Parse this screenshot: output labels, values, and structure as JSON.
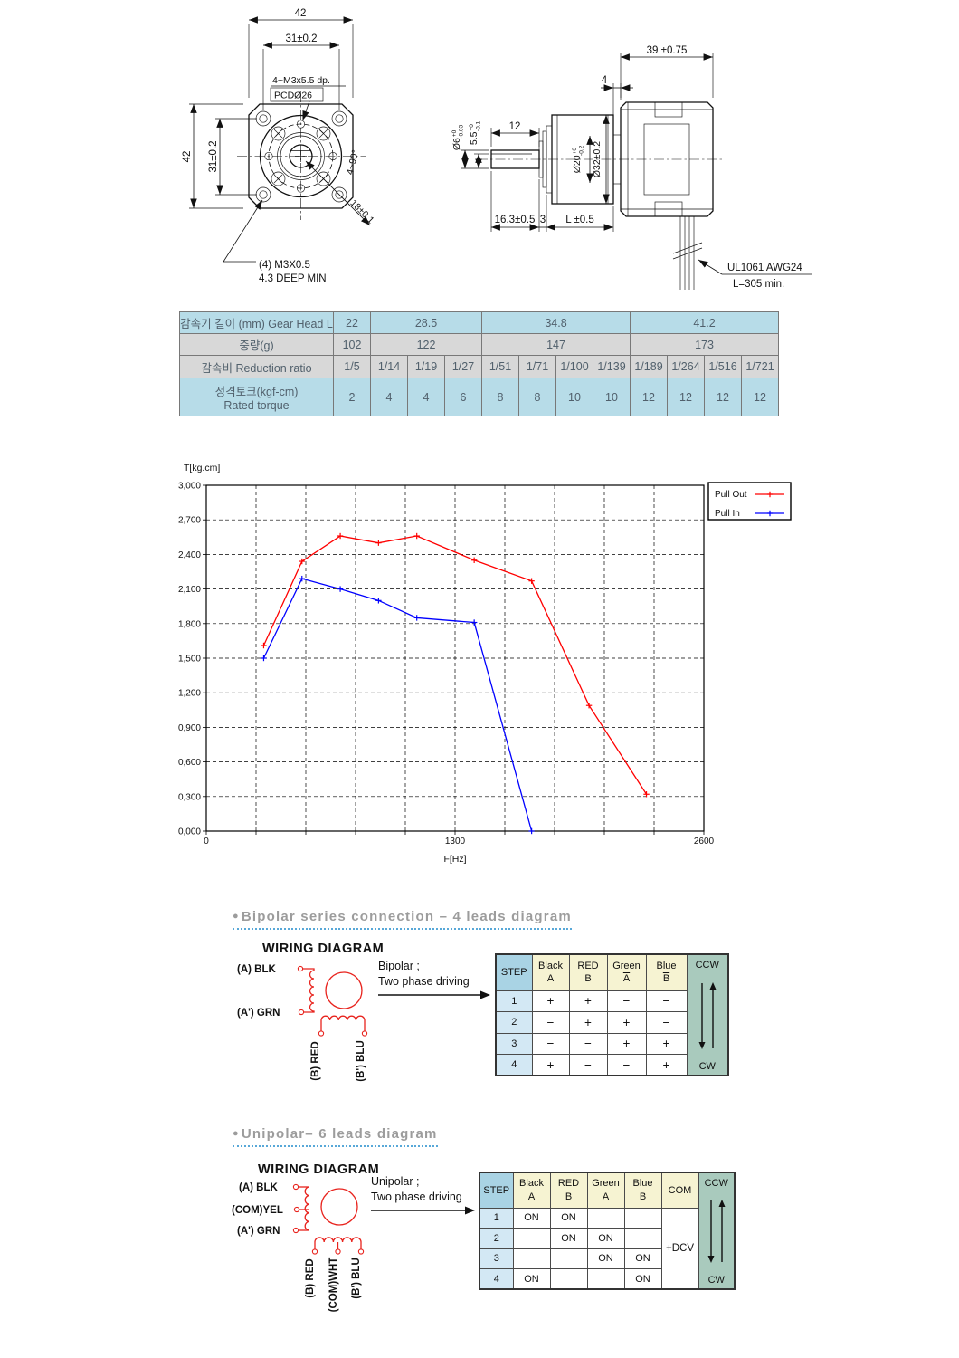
{
  "front_view": {
    "dim_width_top": "42",
    "dim_width_inner": "31±0.2",
    "dim_height_left": "42",
    "dim_height_inner": "31±0.2",
    "tap_label": "4~M3x5.5  dp.",
    "pcd_label": "PCDØ26",
    "angle_label": "4~90°",
    "diag_dim": "18±0.1",
    "note_line1": "(4) M3X0.5",
    "note_line2": "4.3 DEEP MIN"
  },
  "side_view": {
    "dim_motor_len": "39 ±0.75",
    "dim_boss": "4",
    "dim_shaft_len": "12",
    "shaft_dia": {
      "base": "Ø6",
      "sup": "+0",
      "sub": "-0.03"
    },
    "shaft_flat": {
      "base": "5.5",
      "sup": "+0",
      "sub": "-0.1"
    },
    "pilot_dia": {
      "base": "Ø20",
      "sup": "+0",
      "sub": "-0.2"
    },
    "body_dia": "Ø32±0.2",
    "dim_front_len": "16.3±0.5",
    "dim_plate": "3",
    "dim_gear_len": "L  ±0.5",
    "wire_spec": "UL1061 AWG24",
    "wire_len": "L=305 min."
  },
  "spec_table": {
    "rows": [
      {
        "label": "감속기 길이 (mm) Gear Head L",
        "bg": "blue",
        "cells": [
          {
            "t": "22",
            "s": 1
          },
          {
            "t": "28.5",
            "s": 3
          },
          {
            "t": "34.8",
            "s": 4
          },
          {
            "t": "41.2",
            "s": 4
          }
        ]
      },
      {
        "label": "중량(g)",
        "bg": "gray",
        "cells": [
          {
            "t": "102",
            "s": 1
          },
          {
            "t": "122",
            "s": 3
          },
          {
            "t": "147",
            "s": 4
          },
          {
            "t": "173",
            "s": 4
          }
        ]
      },
      {
        "label": "감속비 Reduction ratio",
        "bg": "gray",
        "cells": [
          {
            "t": "1/5",
            "s": 1
          },
          {
            "t": "1/14",
            "s": 1
          },
          {
            "t": "1/19",
            "s": 1
          },
          {
            "t": "1/27",
            "s": 1
          },
          {
            "t": "1/51",
            "s": 1
          },
          {
            "t": "1/71",
            "s": 1
          },
          {
            "t": "1/100",
            "s": 1
          },
          {
            "t": "1/139",
            "s": 1
          },
          {
            "t": "1/189",
            "s": 1
          },
          {
            "t": "1/264",
            "s": 1
          },
          {
            "t": "1/516",
            "s": 1
          },
          {
            "t": "1/721",
            "s": 1
          }
        ]
      },
      {
        "label": "정격토크(kgf-cm)\nRated torque",
        "bg": "blue",
        "cells": [
          {
            "t": "2",
            "s": 1
          },
          {
            "t": "4",
            "s": 1
          },
          {
            "t": "4",
            "s": 1
          },
          {
            "t": "6",
            "s": 1
          },
          {
            "t": "8",
            "s": 1
          },
          {
            "t": "8",
            "s": 1
          },
          {
            "t": "10",
            "s": 1
          },
          {
            "t": "10",
            "s": 1
          },
          {
            "t": "12",
            "s": 1
          },
          {
            "t": "12",
            "s": 1
          },
          {
            "t": "12",
            "s": 1
          },
          {
            "t": "12",
            "s": 1
          }
        ]
      }
    ]
  },
  "chart_data": {
    "type": "line",
    "title": "",
    "ylabel": "T[kg.cm]",
    "xlabel": "F[Hz]",
    "xlim": [
      0,
      2600
    ],
    "ylim": [
      0,
      3.0
    ],
    "grid": {
      "x_divisions": 10,
      "y_divisions": 10,
      "style": "dashed"
    },
    "x_ticks": [
      {
        "v": 0,
        "label": "0"
      },
      {
        "v": 1300,
        "label": "1300"
      },
      {
        "v": 2600,
        "label": "2600"
      }
    ],
    "y_ticks": [
      {
        "v": 3.0,
        "label": "3,000"
      },
      {
        "v": 2.7,
        "label": "2,700"
      },
      {
        "v": 2.4,
        "label": "2,400"
      },
      {
        "v": 2.1,
        "label": "2,100"
      },
      {
        "v": 1.8,
        "label": "1,800"
      },
      {
        "v": 1.5,
        "label": "1,500"
      },
      {
        "v": 1.2,
        "label": "1,200"
      },
      {
        "v": 0.9,
        "label": "0,900"
      },
      {
        "v": 0.6,
        "label": "0,600"
      },
      {
        "v": 0.3,
        "label": "0,300"
      },
      {
        "v": 0.0,
        "label": "0,000"
      }
    ],
    "legend": {
      "position": "top-right"
    },
    "series": [
      {
        "name": "Pull Out",
        "color": "#ff0000",
        "points": [
          [
            300,
            1.61
          ],
          [
            500,
            2.34
          ],
          [
            700,
            2.56
          ],
          [
            900,
            2.5
          ],
          [
            1100,
            2.56
          ],
          [
            1400,
            2.35
          ],
          [
            1700,
            2.17
          ],
          [
            2000,
            1.09
          ],
          [
            2300,
            0.32
          ]
        ]
      },
      {
        "name": "Pull In",
        "color": "#0000ff",
        "points": [
          [
            300,
            1.5
          ],
          [
            500,
            2.19
          ],
          [
            700,
            2.1
          ],
          [
            900,
            2.0
          ],
          [
            1100,
            1.85
          ],
          [
            1400,
            1.81
          ],
          [
            1700,
            0.0
          ]
        ]
      }
    ]
  },
  "bipolar": {
    "bullet": "●",
    "heading": "Bipolar series connection – 4 leads diagram",
    "wiring_title": "WIRING DIAGRAM",
    "lead_a": "(A)  BLK",
    "lead_a2": "(A')  GRN",
    "lead_b": "(B) RED",
    "lead_b2": "(B') BLU",
    "drive_line1": "Bipolar ;",
    "drive_line2": "Two phase driving",
    "table": {
      "step_header": "STEP",
      "col_headers": [
        {
          "top": "Black",
          "bottom": "A",
          "overline": false
        },
        {
          "top": "RED",
          "bottom": "B",
          "overline": false
        },
        {
          "top": "Green",
          "bottom": "A",
          "overline": true
        },
        {
          "top": "Blue",
          "bottom": "B",
          "overline": true
        }
      ],
      "ccw": "CCW",
      "cw": "CW",
      "rows": [
        {
          "step": "1",
          "values": [
            "+",
            "+",
            "−",
            "−"
          ]
        },
        {
          "step": "2",
          "values": [
            "−",
            "+",
            "+",
            "−"
          ]
        },
        {
          "step": "3",
          "values": [
            "−",
            "−",
            "+",
            "+"
          ]
        },
        {
          "step": "4",
          "values": [
            "+",
            "−",
            "−",
            "+"
          ]
        }
      ]
    }
  },
  "unipolar": {
    "bullet": "●",
    "heading": "Unipolar– 6 leads diagram",
    "wiring_title": "WIRING DIAGRAM",
    "lead_a": "(A)  BLK",
    "lead_com": "(COM)YEL",
    "lead_a2": "(A')  GRN",
    "lead_b": "(B) RED",
    "lead_comw": "(COM)WHT",
    "lead_b2": "(B') BLU",
    "drive_line1": "Unipolar ;",
    "drive_line2": "Two phase driving",
    "table": {
      "step_header": "STEP",
      "col_headers": [
        {
          "top": "Black",
          "bottom": "A",
          "overline": false
        },
        {
          "top": "RED",
          "bottom": "B",
          "overline": false
        },
        {
          "top": "Green",
          "bottom": "A",
          "overline": true
        },
        {
          "top": "Blue",
          "bottom": "B",
          "overline": true
        },
        {
          "top": "COM",
          "bottom": "",
          "overline": false
        }
      ],
      "com_value": "+DCV",
      "ccw": "CCW",
      "cw": "CW",
      "rows": [
        {
          "step": "1",
          "values": [
            "ON",
            "ON",
            "",
            ""
          ]
        },
        {
          "step": "2",
          "values": [
            "",
            "ON",
            "ON",
            ""
          ]
        },
        {
          "step": "3",
          "values": [
            "",
            "",
            "ON",
            "ON"
          ]
        },
        {
          "step": "4",
          "values": [
            "ON",
            "",
            "",
            "ON"
          ]
        }
      ]
    }
  }
}
